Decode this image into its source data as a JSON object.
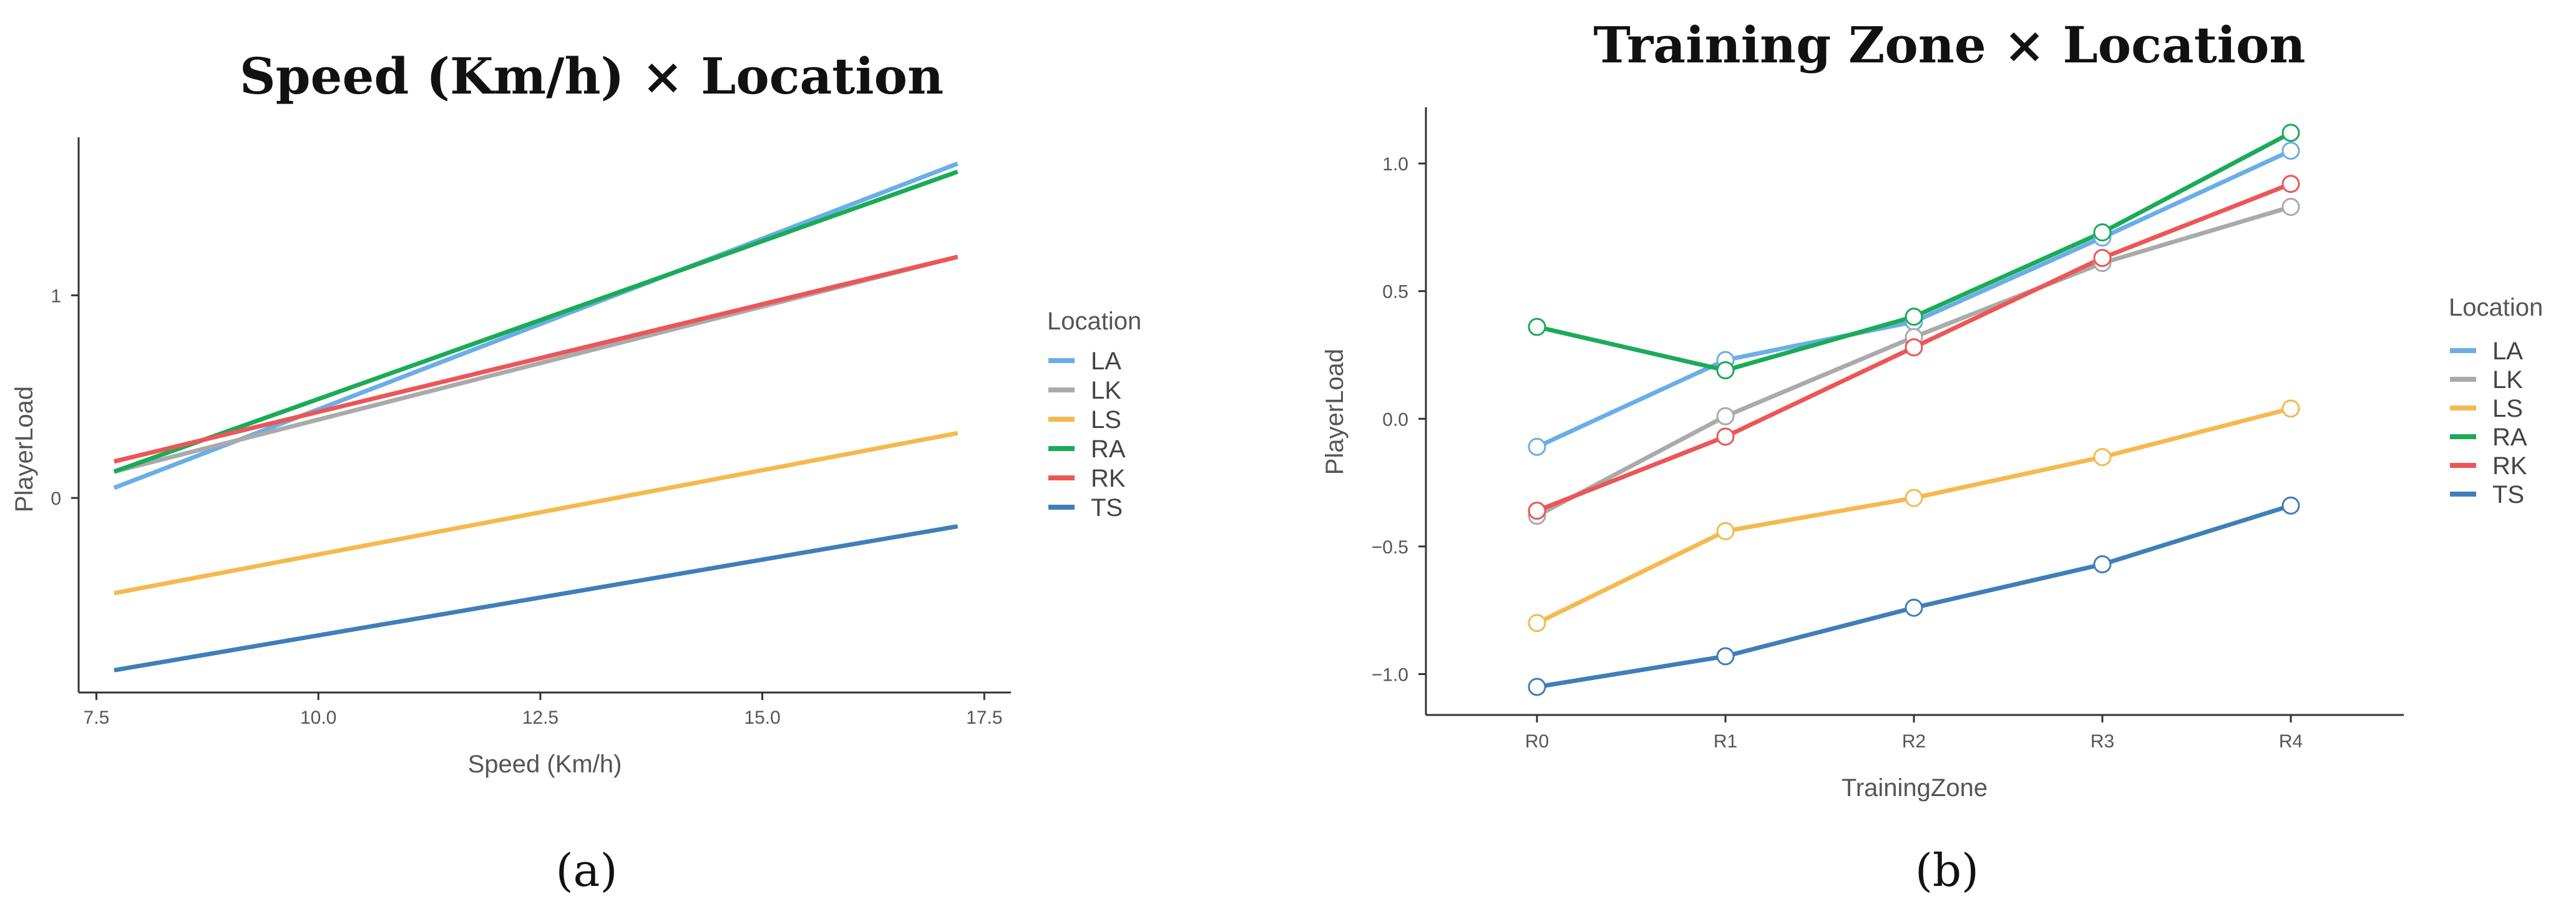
{
  "chart_data": [
    {
      "type": "line",
      "title": "Speed (Km/h) × Location",
      "panel_label": "(a)",
      "xlabel": "Speed (Km/h)",
      "ylabel": "PlayerLoad",
      "xlim": [
        7.3,
        17.8
      ],
      "ylim": [
        -0.96,
        1.78
      ],
      "xticks": [
        7.5,
        10.0,
        12.5,
        15.0,
        17.5
      ],
      "xtick_labels": [
        "7.5",
        "10.0",
        "12.5",
        "15.0",
        "17.5"
      ],
      "yticks": [
        0,
        1
      ],
      "ytick_labels": [
        "0",
        "1"
      ],
      "legend_title": "Location",
      "series": [
        {
          "name": "LA",
          "color": "#6AAEE6",
          "x": [
            7.7,
            17.2
          ],
          "y": [
            0.05,
            1.65
          ]
        },
        {
          "name": "LK",
          "color": "#AAAAAA",
          "x": [
            7.7,
            17.2
          ],
          "y": [
            0.13,
            1.19
          ]
        },
        {
          "name": "LS",
          "color": "#F5B94D",
          "x": [
            7.7,
            17.2
          ],
          "y": [
            -0.47,
            0.32
          ]
        },
        {
          "name": "RA",
          "color": "#1AAB57",
          "x": [
            7.7,
            17.2
          ],
          "y": [
            0.13,
            1.61
          ]
        },
        {
          "name": "RK",
          "color": "#EC5656",
          "x": [
            7.7,
            17.2
          ],
          "y": [
            0.18,
            1.19
          ]
        },
        {
          "name": "TS",
          "color": "#3E7FB8",
          "x": [
            7.7,
            17.2
          ],
          "y": [
            -0.85,
            -0.14
          ]
        }
      ]
    },
    {
      "type": "line",
      "title": "Training Zone × Location",
      "panel_label": "(b)",
      "xlabel": "TrainingZone",
      "ylabel": "PlayerLoad",
      "categories": [
        "R0",
        "R1",
        "R2",
        "R3",
        "R4"
      ],
      "ylim": [
        -1.16,
        1.22
      ],
      "yticks": [
        -1.0,
        -0.5,
        0.0,
        0.5,
        1.0
      ],
      "ytick_labels": [
        "−1.0",
        "−0.5",
        "0.0",
        "0.5",
        "1.0"
      ],
      "legend_title": "Location",
      "series": [
        {
          "name": "LA",
          "color": "#6AAEE6",
          "values": [
            -0.11,
            0.23,
            0.38,
            0.71,
            1.05
          ]
        },
        {
          "name": "LK",
          "color": "#AAAAAA",
          "values": [
            -0.38,
            0.01,
            0.32,
            0.61,
            0.83
          ]
        },
        {
          "name": "LS",
          "color": "#F5B94D",
          "values": [
            -0.8,
            -0.44,
            -0.31,
            -0.15,
            0.04
          ]
        },
        {
          "name": "RA",
          "color": "#1AAB57",
          "values": [
            0.36,
            0.19,
            0.4,
            0.73,
            1.12
          ]
        },
        {
          "name": "RK",
          "color": "#EC5656",
          "values": [
            -0.36,
            -0.07,
            0.28,
            0.63,
            0.92
          ]
        },
        {
          "name": "TS",
          "color": "#3E7FB8",
          "values": [
            -1.05,
            -0.93,
            -0.74,
            -0.57,
            -0.34
          ]
        }
      ]
    }
  ]
}
